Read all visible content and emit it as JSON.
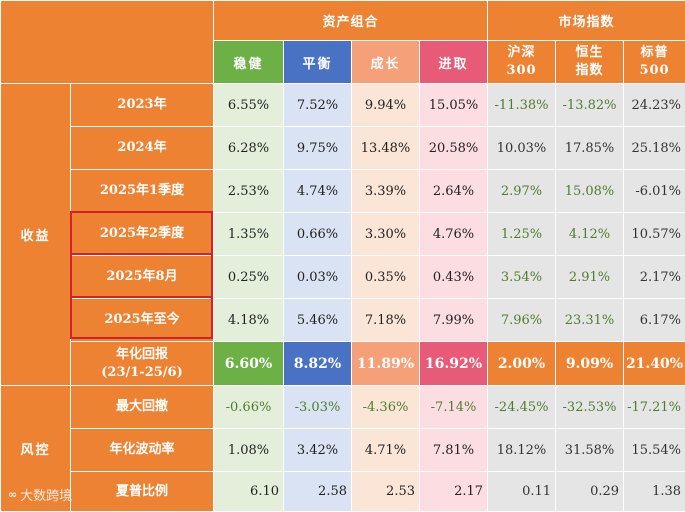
{
  "headers": {
    "portfolio_group": "资产组合",
    "market_group": "市场指数",
    "portfolio_cols": [
      "稳健",
      "平衡",
      "成长",
      "进取"
    ],
    "market_cols": [
      {
        "line1": "沪深",
        "line2": "300"
      },
      {
        "line1": "恒生",
        "line2": "指数"
      },
      {
        "line1": "标普",
        "line2": "500"
      }
    ]
  },
  "groups": {
    "returns": "收益",
    "risk": "风控"
  },
  "returns_rows": [
    {
      "label": "2023年",
      "values": [
        "6.55%",
        "7.52%",
        "9.94%",
        "15.05%",
        "-11.38%",
        "-13.82%",
        "24.23%"
      ]
    },
    {
      "label": "2024年",
      "values": [
        "6.28%",
        "9.75%",
        "13.48%",
        "20.58%",
        "10.03%",
        "17.85%",
        "25.18%"
      ]
    },
    {
      "label": "2025年1季度",
      "values": [
        "2.53%",
        "4.74%",
        "3.39%",
        "2.64%",
        "2.97%",
        "15.08%",
        "-6.01%"
      ]
    },
    {
      "label": "2025年2季度",
      "values": [
        "1.35%",
        "0.66%",
        "3.30%",
        "4.76%",
        "1.25%",
        "4.12%",
        "10.57%"
      ]
    },
    {
      "label": "2025年8月",
      "values": [
        "0.25%",
        "0.03%",
        "0.35%",
        "0.43%",
        "3.54%",
        "2.91%",
        "2.17%"
      ]
    },
    {
      "label": "2025年至今",
      "values": [
        "4.18%",
        "5.46%",
        "7.18%",
        "7.99%",
        "7.96%",
        "23.31%",
        "6.17%"
      ]
    }
  ],
  "annualized": {
    "label_line1": "年化回报",
    "label_line2": "(23/1-25/6)",
    "values": [
      "6.60%",
      "8.82%",
      "11.89%",
      "16.92%",
      "2.00%",
      "9.09%",
      "21.40%"
    ]
  },
  "risk_rows": [
    {
      "label": "最大回撤",
      "values": [
        "-0.66%",
        "-3.03%",
        "-4.36%",
        "-7.14%",
        "-24.45%",
        "-32.53%",
        "-17.21%"
      ]
    },
    {
      "label": "年化波动率",
      "values": [
        "1.08%",
        "3.42%",
        "4.71%",
        "7.81%",
        "18.12%",
        "31.58%",
        "15.54%"
      ]
    },
    {
      "label": "夏普比例",
      "values": [
        "6.10",
        "2.58",
        "2.53",
        "2.17",
        "0.11",
        "0.29",
        "1.38"
      ]
    }
  ],
  "watermark": {
    "mark": "∞",
    "text": "大数跨境"
  },
  "colors": {
    "orange": "#ee8233",
    "steady": "#6cb046",
    "balance": "#4a72c4",
    "growth": "#f6a07a",
    "aggressive": "#e75a78",
    "highlight_border": "#d6202a"
  }
}
